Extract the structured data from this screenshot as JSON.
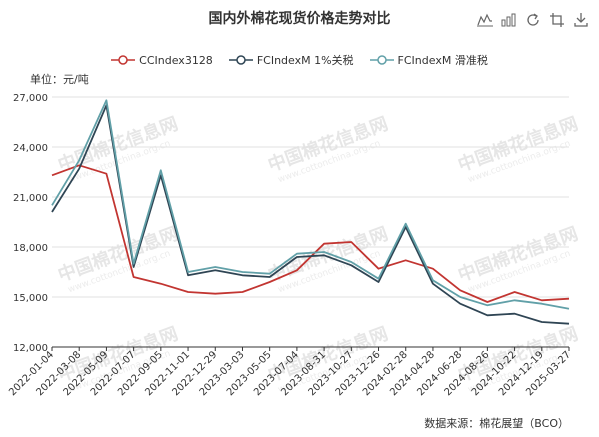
{
  "title": "国内外棉花现货价格走势对比",
  "unit_label": "单位：元/吨",
  "source_label": "数据来源：棉花展望（BCO）",
  "watermark": "中国棉花信息网",
  "watermark_url": "www.cottonchina.org.cn",
  "toolbox": [
    "line-chart-icon",
    "bar-chart-icon",
    "refresh-icon",
    "restore-icon",
    "download-icon"
  ],
  "chart_data": {
    "type": "line",
    "y_ticks": [
      "12,000",
      "15,000",
      "18,000",
      "21,000",
      "24,000",
      "27,000"
    ],
    "ylim": [
      12000,
      27000
    ],
    "x_ticks": [
      "2022-01-04",
      "2022-03-08",
      "2022-05-09",
      "2022-07-07",
      "2022-09-05",
      "2022-11-01",
      "2022-12-29",
      "2023-03-03",
      "2023-05-05",
      "2023-07-04",
      "2023-08-31",
      "2023-10-27",
      "2023-12-26",
      "2024-02-28",
      "2024-04-28",
      "2024-06-28",
      "2024-08-26",
      "2024-10-22",
      "2024-12-19",
      "2025-03-27"
    ],
    "x": [
      "2022-01-04",
      "2022-03-08",
      "2022-05-09",
      "2022-07-07",
      "2022-09-05",
      "2022-11-01",
      "2022-12-29",
      "2023-03-03",
      "2023-05-05",
      "2023-07-04",
      "2023-08-31",
      "2023-10-27",
      "2023-12-26",
      "2024-02-28",
      "2024-04-28",
      "2024-06-28",
      "2024-08-26",
      "2024-10-22",
      "2024-12-19",
      "2025-03-27"
    ],
    "series": [
      {
        "name": "CCIndex3128",
        "color": "#c23531",
        "values": [
          22300,
          22900,
          22400,
          16200,
          15800,
          15300,
          15200,
          15300,
          15900,
          16600,
          18200,
          18300,
          16700,
          17200,
          16700,
          15400,
          14700,
          15300,
          14800,
          14900
        ]
      },
      {
        "name": "FCIndexM 1%关税",
        "color": "#2f4554",
        "values": [
          20100,
          22700,
          26500,
          16800,
          22300,
          16300,
          16600,
          16300,
          16200,
          17400,
          17500,
          16900,
          15900,
          19200,
          15800,
          14600,
          13900,
          14000,
          13500,
          13400
        ]
      },
      {
        "name": "FCIndexM 滑准税",
        "color": "#61a0a8",
        "values": [
          20500,
          23200,
          26800,
          17000,
          22600,
          16500,
          16800,
          16500,
          16400,
          17600,
          17700,
          17100,
          16100,
          19400,
          16000,
          15000,
          14500,
          14800,
          14600,
          14300
        ]
      }
    ]
  }
}
